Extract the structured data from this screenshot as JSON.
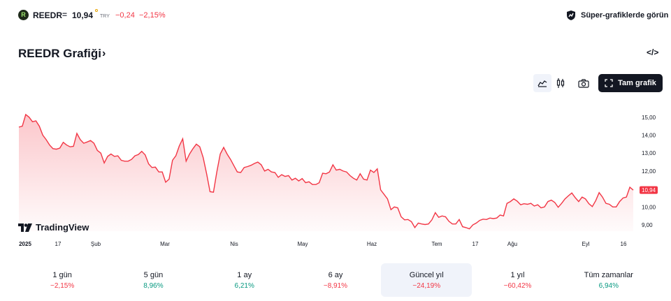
{
  "header": {
    "logo_letter": "R",
    "symbol": "REEDR",
    "equals": "=",
    "price": "10,94",
    "currency": "TRY",
    "change": "−0,24",
    "change_pct": "−2,15%",
    "super_charts_label": "Süper-grafiklerde görün"
  },
  "title": {
    "text": "REEDR Grafiği",
    "chevron": "›",
    "embed_symbol": "</>"
  },
  "toolbar": {
    "fullscreen_label": "Tam grafik",
    "area_icon": "area-chart-icon",
    "candle_icon": "candle-chart-icon",
    "camera_icon": "camera-icon"
  },
  "chart_data": {
    "type": "area",
    "yticks": [
      "15,00",
      "14,00",
      "13,00",
      "12,00",
      "11,00",
      "10,00",
      "9,00"
    ],
    "ylim": [
      9.0,
      15.0
    ],
    "xticks": [
      "2025",
      "17",
      "Şub",
      "Mar",
      "Nis",
      "May",
      "Haz",
      "Tem",
      "17",
      "Ağu",
      "Eyl",
      "16"
    ],
    "last_value_label": "10,94",
    "line_color": "#f23645",
    "values": [
      14.45,
      14.5,
      15.15,
      15.0,
      14.75,
      14.8,
      14.5,
      14.0,
      13.75,
      13.45,
      13.25,
      13.22,
      13.28,
      13.6,
      13.45,
      13.35,
      13.38,
      14.1,
      13.75,
      13.55,
      13.62,
      13.7,
      13.55,
      13.15,
      13.0,
      12.45,
      12.82,
      12.95,
      12.82,
      12.85,
      12.6,
      12.55,
      12.55,
      12.65,
      12.85,
      12.92,
      13.1,
      12.9,
      12.4,
      12.2,
      12.22,
      11.95,
      11.95,
      11.38,
      11.55,
      12.6,
      12.85,
      13.4,
      13.8,
      12.55,
      12.95,
      13.25,
      13.5,
      13.35,
      12.75,
      11.85,
      10.85,
      10.82,
      11.95,
      12.95,
      13.32,
      12.95,
      12.65,
      12.3,
      11.95,
      11.92,
      12.2,
      12.25,
      12.32,
      12.42,
      12.5,
      12.35,
      12.0,
      12.1,
      11.95,
      11.92,
      11.65,
      11.8,
      11.7,
      11.75,
      11.5,
      11.6,
      11.45,
      11.58,
      11.35,
      11.4,
      11.25,
      11.25,
      11.35,
      11.88,
      11.85,
      11.95,
      12.35,
      12.05,
      12.1,
      12.0,
      11.95,
      11.75,
      11.6,
      11.5,
      11.85,
      11.55,
      11.5,
      12.05,
      11.92,
      12.12,
      10.95,
      10.7,
      10.45,
      9.85,
      10.0,
      9.95,
      9.45,
      9.28,
      9.3,
      9.18,
      8.85,
      9.1,
      9.05,
      9.02,
      9.05,
      9.28,
      9.68,
      9.42,
      9.5,
      9.45,
      9.2,
      9.05,
      9.05,
      9.3,
      8.9,
      8.85,
      8.78,
      9.0,
      9.1,
      9.25,
      9.32,
      9.3,
      9.38,
      9.35,
      9.38,
      9.55,
      9.5,
      10.2,
      10.3,
      10.45,
      10.32,
      10.12,
      10.18,
      10.15,
      10.2,
      10.05,
      10.12,
      9.95,
      10.0,
      10.3,
      10.38,
      10.25,
      9.98,
      10.2,
      10.45,
      10.62,
      10.78,
      10.52,
      10.3,
      10.55,
      10.45,
      10.18,
      10.02,
      10.35,
      10.8,
      10.55,
      10.2,
      10.15,
      10.0,
      10.0,
      10.3,
      10.5,
      10.55,
      11.1,
      10.94
    ]
  },
  "watermark": "TradingView",
  "periods": [
    {
      "label": "1 gün",
      "value": "−2,15%",
      "trend": "neg",
      "active": false
    },
    {
      "label": "5 gün",
      "value": "8,96%",
      "trend": "pos",
      "active": false
    },
    {
      "label": "1 ay",
      "value": "6,21%",
      "trend": "pos",
      "active": false
    },
    {
      "label": "6 ay",
      "value": "−8,91%",
      "trend": "neg",
      "active": false
    },
    {
      "label": "Güncel yıl",
      "value": "−24,19%",
      "trend": "neg",
      "active": true
    },
    {
      "label": "1 yıl",
      "value": "−60,42%",
      "trend": "neg",
      "active": false
    },
    {
      "label": "Tüm zamanlar",
      "value": "6,94%",
      "trend": "pos",
      "active": false
    }
  ]
}
